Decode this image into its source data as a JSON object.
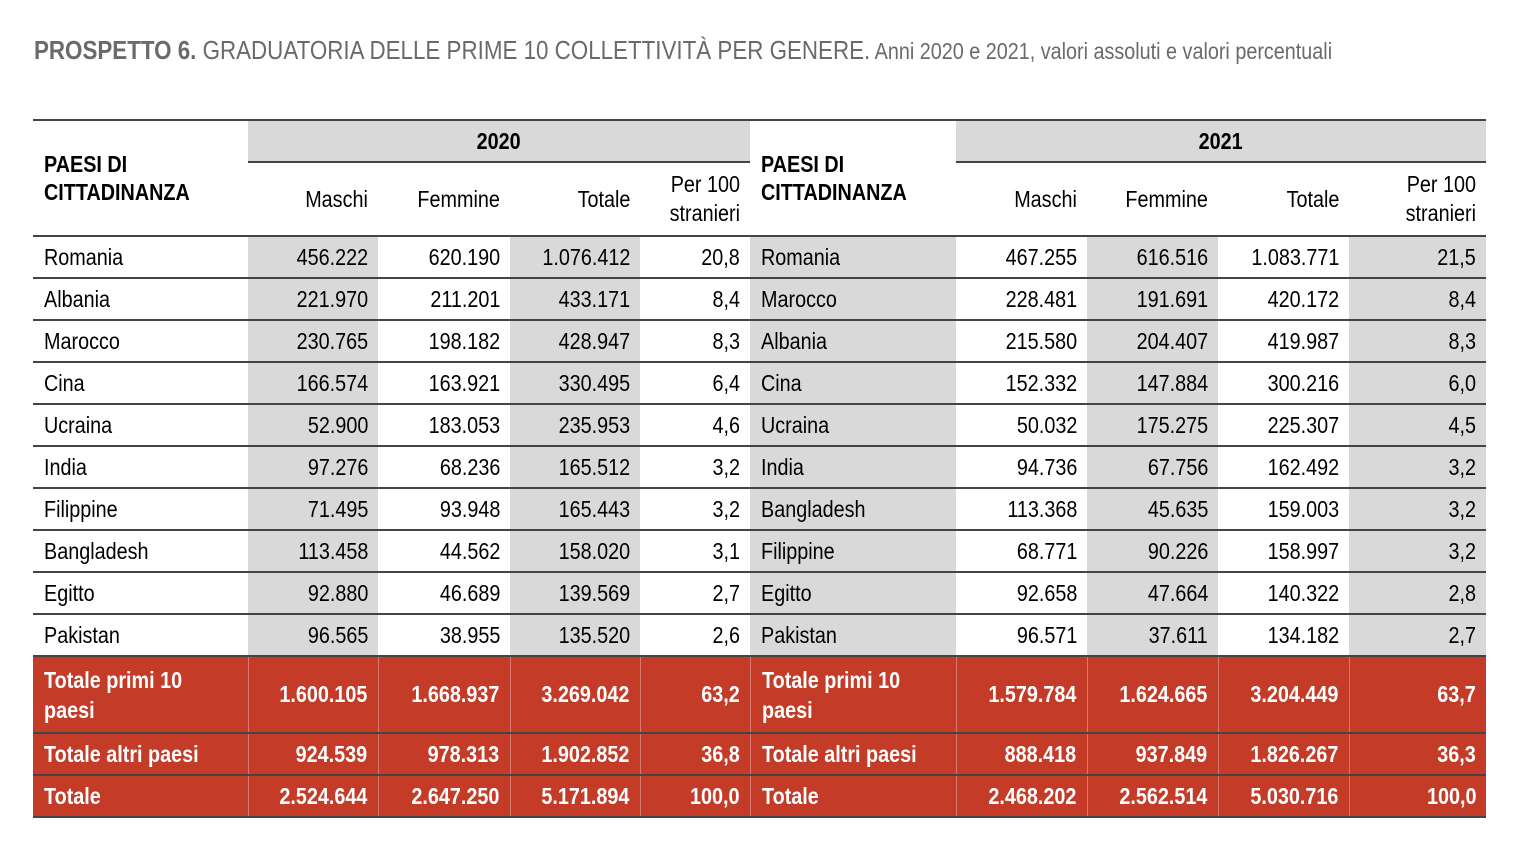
{
  "title": {
    "lead": "PROSPETTO 6.",
    "main": " GRADUATORIA DELLE PRIME 10 COLLETTIVITÀ PER GENERE.",
    "sub": " Anni 2020 e 2021, valori assoluti e valori percentuali"
  },
  "colors": {
    "band_gray": "#d9d9d9",
    "total_red": "#c43b28",
    "title_gray": "#6a6a6a"
  },
  "table": {
    "name_header": "PAESI DI CITTADINANZA",
    "years": [
      "2020",
      "2021"
    ],
    "columns": [
      "Maschi",
      "Femmine",
      "Totale",
      "Per 100 stranieri"
    ],
    "rows": [
      {
        "y2020": [
          "Romania",
          "456.222",
          "620.190",
          "1.076.412",
          "20,8"
        ],
        "y2021": [
          "Romania",
          "467.255",
          "616.516",
          "1.083.771",
          "21,5"
        ]
      },
      {
        "y2020": [
          "Albania",
          "221.970",
          "211.201",
          "433.171",
          "8,4"
        ],
        "y2021": [
          "Marocco",
          "228.481",
          "191.691",
          "420.172",
          "8,4"
        ]
      },
      {
        "y2020": [
          "Marocco",
          "230.765",
          "198.182",
          "428.947",
          "8,3"
        ],
        "y2021": [
          "Albania",
          "215.580",
          "204.407",
          "419.987",
          "8,3"
        ]
      },
      {
        "y2020": [
          "Cina",
          "166.574",
          "163.921",
          "330.495",
          "6,4"
        ],
        "y2021": [
          "Cina",
          "152.332",
          "147.884",
          "300.216",
          "6,0"
        ]
      },
      {
        "y2020": [
          "Ucraina",
          "52.900",
          "183.053",
          "235.953",
          "4,6"
        ],
        "y2021": [
          "Ucraina",
          "50.032",
          "175.275",
          "225.307",
          "4,5"
        ]
      },
      {
        "y2020": [
          "India",
          "97.276",
          "68.236",
          "165.512",
          "3,2"
        ],
        "y2021": [
          "India",
          "94.736",
          "67.756",
          "162.492",
          "3,2"
        ]
      },
      {
        "y2020": [
          "Filippine",
          "71.495",
          "93.948",
          "165.443",
          "3,2"
        ],
        "y2021": [
          "Bangladesh",
          "113.368",
          "45.635",
          "159.003",
          "3,2"
        ]
      },
      {
        "y2020": [
          "Bangladesh",
          "113.458",
          "44.562",
          "158.020",
          "3,1"
        ],
        "y2021": [
          "Filippine",
          "68.771",
          "90.226",
          "158.997",
          "3,2"
        ]
      },
      {
        "y2020": [
          "Egitto",
          "92.880",
          "46.689",
          "139.569",
          "2,7"
        ],
        "y2021": [
          "Egitto",
          "92.658",
          "47.664",
          "140.322",
          "2,8"
        ]
      },
      {
        "y2020": [
          "Pakistan",
          "96.565",
          "38.955",
          "135.520",
          "2,6"
        ],
        "y2021": [
          "Pakistan",
          "96.571",
          "37.611",
          "134.182",
          "2,7"
        ]
      }
    ],
    "totals": [
      {
        "y2020": [
          "Totale primi 10 paesi",
          "1.600.105",
          "1.668.937",
          "3.269.042",
          "63,2"
        ],
        "y2021": [
          "Totale primi 10 paesi",
          "1.579.784",
          "1.624.665",
          "3.204.449",
          "63,7"
        ]
      },
      {
        "y2020": [
          "Totale altri paesi",
          "924.539",
          "978.313",
          "1.902.852",
          "36,8"
        ],
        "y2021": [
          "Totale altri paesi",
          "888.418",
          "937.849",
          "1.826.267",
          "36,3"
        ]
      },
      {
        "y2020": [
          "Totale",
          "2.524.644",
          "2.647.250",
          "5.171.894",
          "100,0"
        ],
        "y2021": [
          "Totale",
          "2.468.202",
          "2.562.514",
          "5.030.716",
          "100,0"
        ]
      }
    ]
  }
}
